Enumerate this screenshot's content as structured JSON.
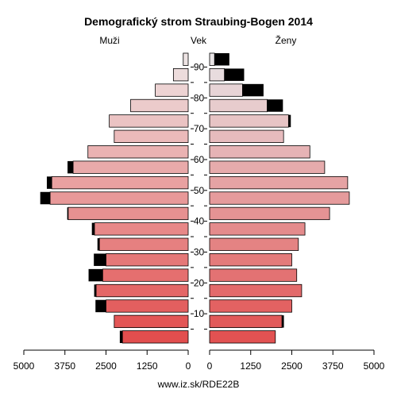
{
  "chart_data": {
    "type": "bar",
    "title": "Demografický strom Straubing-Bogen 2014",
    "left_label": "Muži",
    "center_label": "Vek",
    "right_label": "Ženy",
    "footer": "www.iz.sk/RDE22B",
    "xlim": [
      0,
      5000
    ],
    "x_ticks_left": [
      "5000",
      "3750",
      "2500",
      "1250",
      "0"
    ],
    "x_ticks_right": [
      "0",
      "1250",
      "2500",
      "3750",
      "5000"
    ],
    "x_tick_values_left": [
      5000,
      3750,
      2500,
      1250,
      0
    ],
    "x_tick_values_right": [
      0,
      1250,
      2500,
      3750,
      5000
    ],
    "age_tick_labels": [
      "10",
      "20",
      "30",
      "40",
      "50",
      "60",
      "70",
      "80",
      "90"
    ],
    "age_groups": [
      "0-4",
      "5-9",
      "10-14",
      "15-19",
      "20-24",
      "25-29",
      "30-34",
      "35-39",
      "40-44",
      "45-49",
      "50-54",
      "55-59",
      "60-64",
      "65-69",
      "70-74",
      "75-79",
      "80-84",
      "85-89",
      "90+"
    ],
    "series": [
      {
        "side": "left",
        "values": [
          2000,
          2250,
          2500,
          2800,
          2600,
          2500,
          2700,
          2850,
          3650,
          4200,
          4150,
          3500,
          3050,
          2250,
          2400,
          1750,
          1000,
          450,
          150
        ],
        "excess": [
          80,
          0,
          320,
          60,
          430,
          370,
          60,
          80,
          30,
          300,
          150,
          170,
          0,
          0,
          0,
          0,
          0,
          0,
          0
        ]
      },
      {
        "side": "right",
        "values": [
          2000,
          2200,
          2500,
          2800,
          2650,
          2500,
          2700,
          2900,
          3650,
          4250,
          4200,
          3500,
          3050,
          2250,
          2400,
          1750,
          1000,
          450,
          150
        ],
        "excess": [
          0,
          60,
          0,
          0,
          0,
          0,
          0,
          0,
          0,
          0,
          0,
          0,
          0,
          0,
          70,
          480,
          640,
          600,
          450
        ]
      }
    ],
    "grid": false
  }
}
